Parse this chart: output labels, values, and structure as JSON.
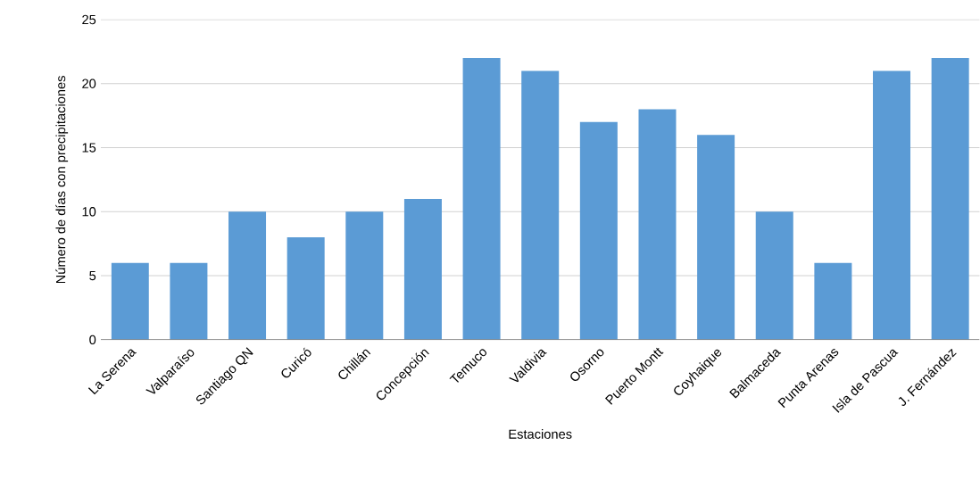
{
  "chart_data": {
    "type": "bar",
    "xlabel": "Estaciones",
    "ylabel": "Número de días con precipitaciones",
    "categories": [
      "La Serena",
      "Valparaíso",
      "Santiago QN",
      "Curicó",
      "Chillán",
      "Concepción",
      "Temuco",
      "Valdivia",
      "Osorno",
      "Puerto Montt",
      "Coyhaique",
      "Balmaceda",
      "Punta Arenas",
      "Isla de Pascua",
      "J. Fernández"
    ],
    "values": [
      6,
      6,
      10,
      8,
      10,
      11,
      22,
      21,
      17,
      18,
      16,
      10,
      6,
      21,
      22
    ],
    "color": "#5b9bd5",
    "ylim": [
      0,
      25
    ],
    "yticks": [
      0,
      5,
      10,
      15,
      20,
      25
    ],
    "grid": "y"
  }
}
